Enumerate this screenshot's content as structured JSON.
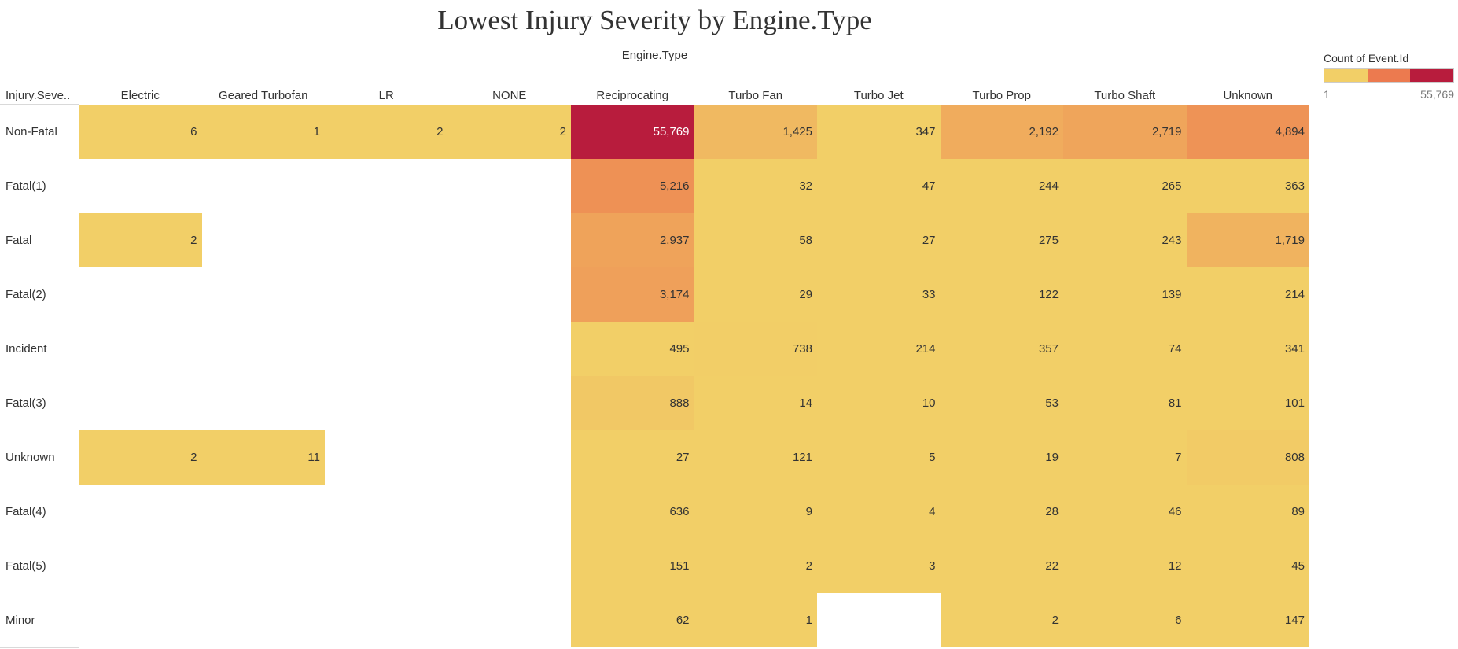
{
  "chart_data": {
    "type": "heatmap",
    "title": "Lowest Injury Severity by Engine.Type",
    "column_header": "Engine.Type",
    "row_header": "Injury.Seve..",
    "columns": [
      "Electric",
      "Geared Turbofan",
      "LR",
      "NONE",
      "Reciprocating",
      "Turbo Fan",
      "Turbo Jet",
      "Turbo Prop",
      "Turbo Shaft",
      "Unknown"
    ],
    "rows": [
      "Non-Fatal",
      "Fatal(1)",
      "Fatal",
      "Fatal(2)",
      "Incident",
      "Fatal(3)",
      "Unknown",
      "Fatal(4)",
      "Fatal(5)",
      "Minor"
    ],
    "values": [
      [
        6,
        1,
        2,
        2,
        55769,
        1425,
        347,
        2192,
        2719,
        4894
      ],
      [
        null,
        null,
        null,
        null,
        5216,
        32,
        47,
        244,
        265,
        363
      ],
      [
        2,
        null,
        null,
        null,
        2937,
        58,
        27,
        275,
        243,
        1719
      ],
      [
        null,
        null,
        null,
        null,
        3174,
        29,
        33,
        122,
        139,
        214
      ],
      [
        null,
        null,
        null,
        null,
        495,
        738,
        214,
        357,
        74,
        341
      ],
      [
        null,
        null,
        null,
        null,
        888,
        14,
        10,
        53,
        81,
        101
      ],
      [
        2,
        11,
        null,
        null,
        27,
        121,
        5,
        19,
        7,
        808
      ],
      [
        null,
        null,
        null,
        null,
        636,
        9,
        4,
        28,
        46,
        89
      ],
      [
        null,
        null,
        null,
        null,
        151,
        2,
        3,
        22,
        12,
        45
      ],
      [
        null,
        null,
        null,
        null,
        62,
        1,
        null,
        2,
        6,
        147
      ]
    ],
    "legend": {
      "title": "Count of Event.Id",
      "min_label": "1",
      "max_label": "55,769",
      "min": 1,
      "max": 55769,
      "colors": [
        "#f2cf67",
        "#ec7a4f",
        "#b81c3d"
      ]
    }
  }
}
